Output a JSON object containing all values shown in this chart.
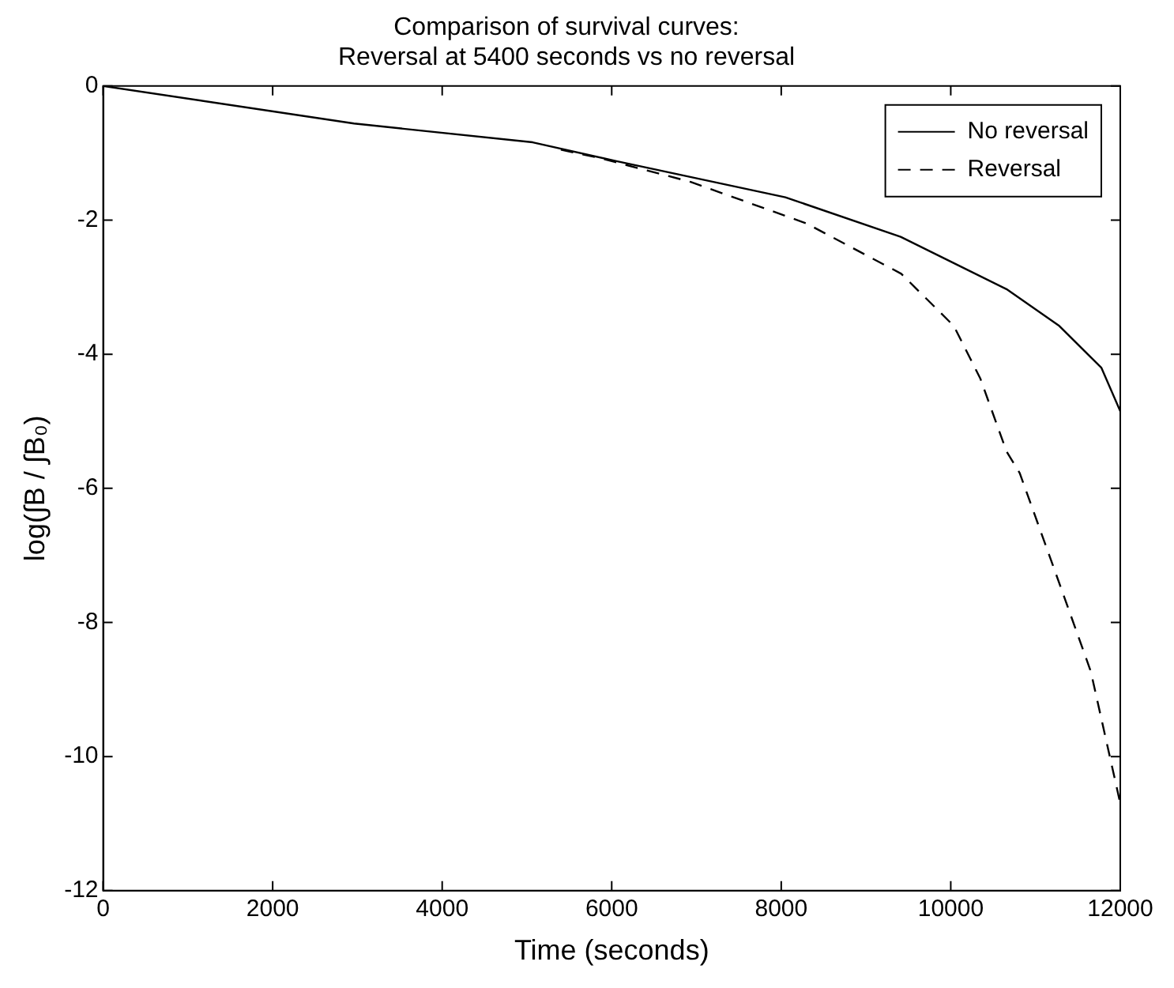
{
  "chart_data": {
    "type": "line",
    "title": "Comparison of survival curves:\nReversal at 5400 seconds vs no reversal",
    "xlabel": "Time (seconds)",
    "ylabel": "log(∫B / ∫B₀)",
    "xlim": [
      0,
      12000
    ],
    "xticks": [
      0,
      2000,
      4000,
      6000,
      8000,
      10000,
      12000
    ],
    "ylim": [
      -12,
      0
    ],
    "yticks": [
      -12,
      -10,
      -8,
      -6,
      -4,
      -2,
      0
    ],
    "grid": false,
    "legend": "top right",
    "marker": "none",
    "series": [
      {
        "name": "No reversal",
        "color": "#000000",
        "line_style": "solid",
        "x": [
          0,
          2960,
          5068,
          6056,
          8049,
          9409,
          10658,
          11273,
          11776,
          12000
        ],
        "values": [
          0,
          -0.56,
          -0.84,
          -1.12,
          -1.66,
          -2.25,
          -3.03,
          -3.57,
          -4.2,
          -4.85
        ]
      },
      {
        "name": "Reversal",
        "color": "#000000",
        "line_style": "dashed",
        "x": [
          5400,
          5876,
          6931,
          8298,
          9416,
          10037,
          10348,
          10658,
          10813,
          11279,
          11652,
          12000
        ],
        "values": [
          -0.95,
          -1.08,
          -1.43,
          -2.05,
          -2.8,
          -3.58,
          -4.36,
          -5.45,
          -5.77,
          -7.41,
          -8.73,
          -10.7
        ]
      }
    ]
  }
}
